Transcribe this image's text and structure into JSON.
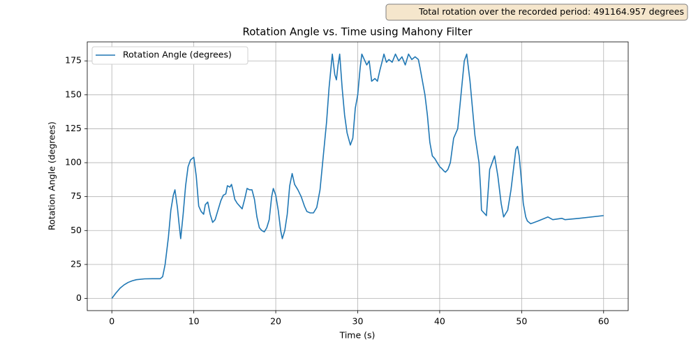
{
  "chart_data": {
    "type": "line",
    "title": "Rotation Angle vs. Time  using Mahony Filter",
    "annotation": "Total rotation over the recorded period: 491164.957 degrees",
    "x_label": "Time (s)",
    "y_label": "Rotation Angle (degrees)",
    "x": [
      0,
      0.5,
      1,
      1.5,
      2,
      2.5,
      3,
      4,
      5,
      5.9,
      6.2,
      6.5,
      6.9,
      7.2,
      7.5,
      7.7,
      8,
      8.2,
      8.4,
      8.7,
      9,
      9.3,
      9.6,
      10,
      10.3,
      10.6,
      10.9,
      11.2,
      11.4,
      11.7,
      12,
      12.3,
      12.6,
      12.9,
      13.3,
      13.6,
      13.9,
      14.1,
      14.4,
      14.6,
      14.8,
      15,
      15.3,
      15.6,
      15.9,
      16.2,
      16.5,
      16.8,
      17.1,
      17.4,
      17.7,
      18,
      18.3,
      18.6,
      18.9,
      19.2,
      19.5,
      19.7,
      20,
      20.3,
      20.6,
      20.8,
      21.1,
      21.4,
      21.7,
      22,
      22.3,
      22.7,
      23.1,
      23.5,
      23.8,
      24.2,
      24.6,
      25,
      25.4,
      25.8,
      26.2,
      26.5,
      26.9,
      27.2,
      27.4,
      27.6,
      27.8,
      28.1,
      28.4,
      28.7,
      29.1,
      29.4,
      29.7,
      30,
      30.3,
      30.5,
      30.8,
      31.1,
      31.4,
      31.7,
      32.1,
      32.4,
      32.7,
      33,
      33.2,
      33.5,
      33.8,
      34.2,
      34.6,
      35,
      35.4,
      35.8,
      36.2,
      36.6,
      37,
      37.4,
      37.6,
      37.9,
      38.2,
      38.5,
      38.8,
      39.1,
      39.4,
      39.7,
      40,
      40.2,
      40.5,
      40.7,
      41,
      41.3,
      41.7,
      42.2,
      42.6,
      43,
      43.3,
      43.7,
      44,
      44.3,
      44.8,
      45,
      45.1,
      45.7,
      46.1,
      46.4,
      46.7,
      47.1,
      47.5,
      47.8,
      48.3,
      48.7,
      49,
      49.3,
      49.5,
      49.7,
      50,
      50.2,
      50.5,
      50.7,
      51.1,
      52,
      53.2,
      53.8,
      54.9,
      55.3,
      57,
      60
    ],
    "series": [
      {
        "name": "Rotation Angle (degrees)",
        "color": "#1f77b4",
        "values": [
          0,
          4,
          7.5,
          10,
          11.8,
          13,
          13.8,
          14.4,
          14.5,
          14.5,
          16,
          25,
          45,
          65,
          76,
          80,
          67,
          55,
          44,
          62,
          83,
          97,
          102,
          104,
          90,
          68,
          64,
          62,
          69,
          71,
          62,
          56,
          58,
          64,
          72,
          76,
          77,
          83,
          82,
          84,
          79,
          73,
          70,
          68,
          66,
          73,
          81,
          80,
          80,
          73,
          60,
          52,
          50,
          49,
          52,
          58,
          75,
          81,
          76,
          65,
          50,
          44,
          50,
          62,
          83,
          92,
          84,
          80,
          75,
          68,
          64,
          63,
          63,
          67,
          80,
          105,
          130,
          155,
          180,
          165,
          161,
          172,
          180,
          155,
          135,
          122,
          113,
          118,
          140,
          150,
          170,
          180,
          176,
          172,
          175,
          160,
          162,
          160,
          168,
          175,
          180,
          174,
          176,
          174,
          180,
          175,
          178,
          172,
          180,
          176,
          178,
          176,
          170,
          160,
          150,
          135,
          115,
          105,
          103,
          100,
          97,
          96,
          94,
          93,
          95,
          100,
          118,
          125,
          150,
          175,
          180,
          160,
          140,
          120,
          100,
          80,
          65,
          61,
          95,
          100,
          105,
          90,
          70,
          60,
          65,
          80,
          95,
          110,
          112,
          105,
          85,
          70,
          60,
          57,
          55,
          57,
          60,
          58,
          59,
          58,
          59,
          61
        ]
      }
    ],
    "xlim": [
      -3,
      63
    ],
    "ylim": [
      -9,
      189
    ],
    "xticks": [
      0,
      10,
      20,
      30,
      40,
      50,
      60
    ],
    "yticks": [
      0,
      25,
      50,
      75,
      100,
      125,
      150,
      175
    ],
    "grid": true,
    "legend": "upper left"
  }
}
